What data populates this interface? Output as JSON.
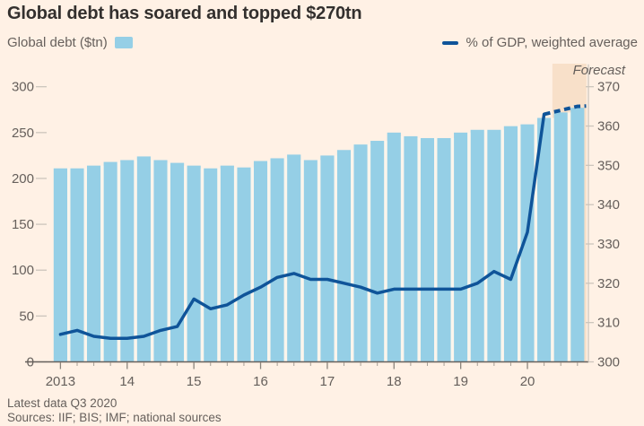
{
  "header": {
    "title": "Global debt has soared and topped $270tn"
  },
  "legend": {
    "bars_label": "Global debt ($tn)",
    "line_label": "% of GDP, weighted average"
  },
  "footer": {
    "note": "Latest data Q3 2020",
    "sources": "Sources: IIF; BIS; IMF; national sources"
  },
  "colors": {
    "background": "#FFF1E5",
    "bar": "#95CFE6",
    "bar_gap": "#FBF5EC",
    "line": "#0F5499",
    "forecast_band": "#F8E0C9",
    "title_text": "#33302E",
    "axis_text": "#66605C",
    "tick_dash": "#CCC5BC",
    "baseline": "#66605C",
    "minor_tick": "#A49D94"
  },
  "chart_data": {
    "type": "bar+line",
    "title": "Global debt has soared and topped $270tn",
    "x": [
      "2013 Q1",
      "2013 Q2",
      "2013 Q3",
      "2013 Q4",
      "2014 Q1",
      "2014 Q2",
      "2014 Q3",
      "2014 Q4",
      "2015 Q1",
      "2015 Q2",
      "2015 Q3",
      "2015 Q4",
      "2016 Q1",
      "2016 Q2",
      "2016 Q3",
      "2016 Q4",
      "2017 Q1",
      "2017 Q2",
      "2017 Q3",
      "2017 Q4",
      "2018 Q1",
      "2018 Q2",
      "2018 Q3",
      "2018 Q4",
      "2019 Q1",
      "2019 Q2",
      "2019 Q3",
      "2019 Q4",
      "2020 Q1",
      "2020 Q2",
      "2020 Q3",
      "2020 Q4"
    ],
    "series": [
      {
        "name": "Global debt ($tn)",
        "type": "bar",
        "axis": "left",
        "values": [
          211,
          211,
          214,
          218,
          220,
          224,
          220,
          217,
          214,
          211,
          214,
          212,
          219,
          222,
          226,
          220,
          225,
          231,
          237,
          241,
          250,
          246,
          244,
          244,
          250,
          253,
          253,
          257,
          259,
          266,
          272,
          277
        ]
      },
      {
        "name": "% of GDP, weighted average",
        "type": "line",
        "axis": "right",
        "values": [
          307,
          308,
          306.5,
          306,
          306,
          306.5,
          308,
          309,
          316,
          313.5,
          314.5,
          317,
          319,
          321.5,
          322.5,
          321,
          321,
          320,
          319,
          317.5,
          318.5,
          318.5,
          318.5,
          318.5,
          318.5,
          320,
          323,
          321,
          333,
          363,
          364,
          365
        ],
        "dashed_from_index": 29
      }
    ],
    "left_axis": {
      "min": 0,
      "max": 300,
      "ticks": [
        0,
        50,
        100,
        150,
        200,
        250,
        300
      ]
    },
    "right_axis": {
      "min": 300,
      "max": 370,
      "ticks": [
        300,
        310,
        320,
        330,
        340,
        350,
        360,
        370
      ]
    },
    "year_ticks": [
      {
        "label": "2013",
        "index": 0
      },
      {
        "label": "14",
        "index": 4
      },
      {
        "label": "15",
        "index": 8
      },
      {
        "label": "16",
        "index": 12
      },
      {
        "label": "17",
        "index": 16
      },
      {
        "label": "18",
        "index": 20
      },
      {
        "label": "19",
        "index": 24
      },
      {
        "label": "20",
        "index": 28
      }
    ],
    "forecast": {
      "label": "Forecast",
      "band_start_index": 30
    },
    "grid": false,
    "legend_position": "top"
  }
}
